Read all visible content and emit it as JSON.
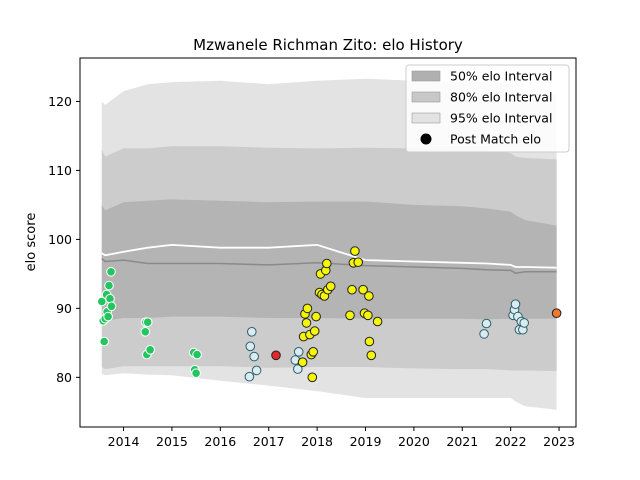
{
  "chart_data": {
    "type": "scatter",
    "title": "Mzwanele Richman Zito: elo History",
    "xlabel": "",
    "ylabel": "elo score",
    "xlim": [
      2013.1,
      2023.35
    ],
    "ylim": [
      72.8,
      126.3
    ],
    "x_ticks": [
      2014,
      2015,
      2016,
      2017,
      2018,
      2019,
      2020,
      2021,
      2022,
      2023
    ],
    "y_ticks": [
      80,
      90,
      100,
      110,
      120
    ],
    "grid": false,
    "legend": {
      "placement": "top-right",
      "entries": [
        {
          "label": "50% elo Interval",
          "color": "#b0b0b0"
        },
        {
          "label": "80% elo Interval",
          "color": "#c8c8c8"
        },
        {
          "label": "95% elo Interval",
          "color": "#e2e2e2"
        },
        {
          "label": "Post Match elo",
          "color": "#000000"
        }
      ]
    },
    "bands": {
      "x": [
        2013.55,
        2013.62,
        2014.0,
        2014.5,
        2015.0,
        2016.0,
        2017.0,
        2018.0,
        2019.0,
        2020.0,
        2021.0,
        2021.5,
        2022.0,
        2022.1,
        2022.3,
        2022.95
      ],
      "b95_upper": [
        120,
        119.5,
        121.5,
        122.5,
        122.8,
        123,
        122.5,
        123,
        123.3,
        123,
        122.8,
        122.8,
        122.5,
        121.5,
        121,
        121
      ],
      "b95_lower": [
        80.5,
        80.3,
        80.6,
        80.4,
        80.3,
        79.5,
        78.8,
        78,
        77,
        77,
        77,
        77,
        77,
        76.5,
        75.8,
        75.3
      ],
      "b80_upper": [
        113,
        112,
        113.2,
        113.2,
        113.5,
        113.5,
        113.3,
        113.2,
        113.3,
        113.2,
        113,
        113,
        112.5,
        112,
        111.8,
        111.6
      ],
      "b80_lower": [
        81.5,
        81.2,
        81.6,
        81.6,
        81.6,
        81.6,
        81.4,
        81.5,
        81.5,
        81.3,
        81.2,
        81.2,
        81,
        81,
        81,
        80.9
      ],
      "b50_upper": [
        105,
        104.2,
        105.4,
        105.6,
        105.8,
        105.6,
        105.4,
        105.5,
        105.5,
        105,
        104.8,
        104.5,
        104,
        103.5,
        102.8,
        102
      ],
      "b50_lower": [
        88.5,
        88.2,
        88.6,
        88.6,
        88.8,
        88.8,
        88.6,
        88.6,
        88.5,
        88.5,
        88.5,
        88.4,
        88.5,
        88.5,
        88.5,
        88.5
      ],
      "mean": [
        98,
        97.7,
        98.2,
        98.8,
        99.2,
        98.8,
        98.8,
        99.2,
        97,
        96.8,
        96.6,
        96.5,
        96.3,
        96,
        96,
        95.9
      ],
      "median": [
        97.2,
        96.8,
        97,
        96.5,
        96.5,
        96.5,
        96.3,
        96.6,
        96.2,
        96,
        95.8,
        95.6,
        95.5,
        95.1,
        95.3,
        95.3
      ]
    },
    "series": [
      {
        "color": "#22c55e",
        "points": [
          [
            2013.55,
            91
          ],
          [
            2013.58,
            88.2
          ],
          [
            2013.6,
            85.2
          ],
          [
            2013.62,
            88.5
          ],
          [
            2013.65,
            92
          ],
          [
            2013.66,
            89.5
          ],
          [
            2013.68,
            88.8
          ],
          [
            2013.7,
            93.3
          ],
          [
            2013.72,
            91.4
          ],
          [
            2013.74,
            95.3
          ],
          [
            2013.75,
            90.3
          ],
          [
            2014.45,
            86.6
          ],
          [
            2014.46,
            88
          ],
          [
            2014.48,
            83.3
          ],
          [
            2014.5,
            88
          ],
          [
            2014.55,
            84
          ],
          [
            2015.45,
            83.6
          ],
          [
            2015.47,
            81.1
          ],
          [
            2015.5,
            80.6
          ],
          [
            2015.52,
            83.3
          ]
        ]
      },
      {
        "color": "#d9ecf2",
        "points": [
          [
            2016.6,
            80.1
          ],
          [
            2016.62,
            84.5
          ],
          [
            2016.65,
            86.6
          ],
          [
            2016.7,
            83
          ],
          [
            2016.75,
            81
          ],
          [
            2017.55,
            82.5
          ],
          [
            2017.6,
            81.2
          ],
          [
            2017.62,
            83.7
          ],
          [
            2021.45,
            86.3
          ],
          [
            2021.5,
            87.8
          ],
          [
            2022.05,
            89
          ],
          [
            2022.08,
            89.8
          ],
          [
            2022.1,
            90.6
          ],
          [
            2022.15,
            88.8
          ],
          [
            2022.18,
            86.9
          ],
          [
            2022.22,
            88.1
          ],
          [
            2022.25,
            86.9
          ],
          [
            2022.28,
            87.9
          ]
        ]
      },
      {
        "color": "#f5f50a",
        "points": [
          [
            2017.7,
            82.2
          ],
          [
            2017.72,
            85.9
          ],
          [
            2017.75,
            89.2
          ],
          [
            2017.78,
            87.9
          ],
          [
            2017.8,
            90
          ],
          [
            2017.85,
            86.2
          ],
          [
            2017.88,
            83.3
          ],
          [
            2017.9,
            80
          ],
          [
            2017.92,
            83.7
          ],
          [
            2017.95,
            86.7
          ],
          [
            2017.98,
            88.8
          ],
          [
            2018.05,
            92.3
          ],
          [
            2018.07,
            95
          ],
          [
            2018.1,
            92
          ],
          [
            2018.15,
            91.8
          ],
          [
            2018.18,
            95.5
          ],
          [
            2018.2,
            96.5
          ],
          [
            2018.22,
            92.7
          ],
          [
            2018.28,
            93.2
          ],
          [
            2018.68,
            89
          ],
          [
            2018.72,
            92.7
          ],
          [
            2018.75,
            96.6
          ],
          [
            2018.78,
            98.3
          ],
          [
            2018.85,
            96.7
          ],
          [
            2018.95,
            92.7
          ],
          [
            2018.98,
            89.3
          ],
          [
            2019.05,
            89
          ],
          [
            2019.07,
            91.8
          ],
          [
            2019.08,
            85.2
          ],
          [
            2019.12,
            83.2
          ],
          [
            2019.25,
            88.1
          ]
        ]
      },
      {
        "color": "#e3282a",
        "points": [
          [
            2017.15,
            83.2
          ]
        ]
      },
      {
        "color": "#f2782a",
        "points": [
          [
            2022.95,
            89.3
          ]
        ]
      }
    ]
  }
}
